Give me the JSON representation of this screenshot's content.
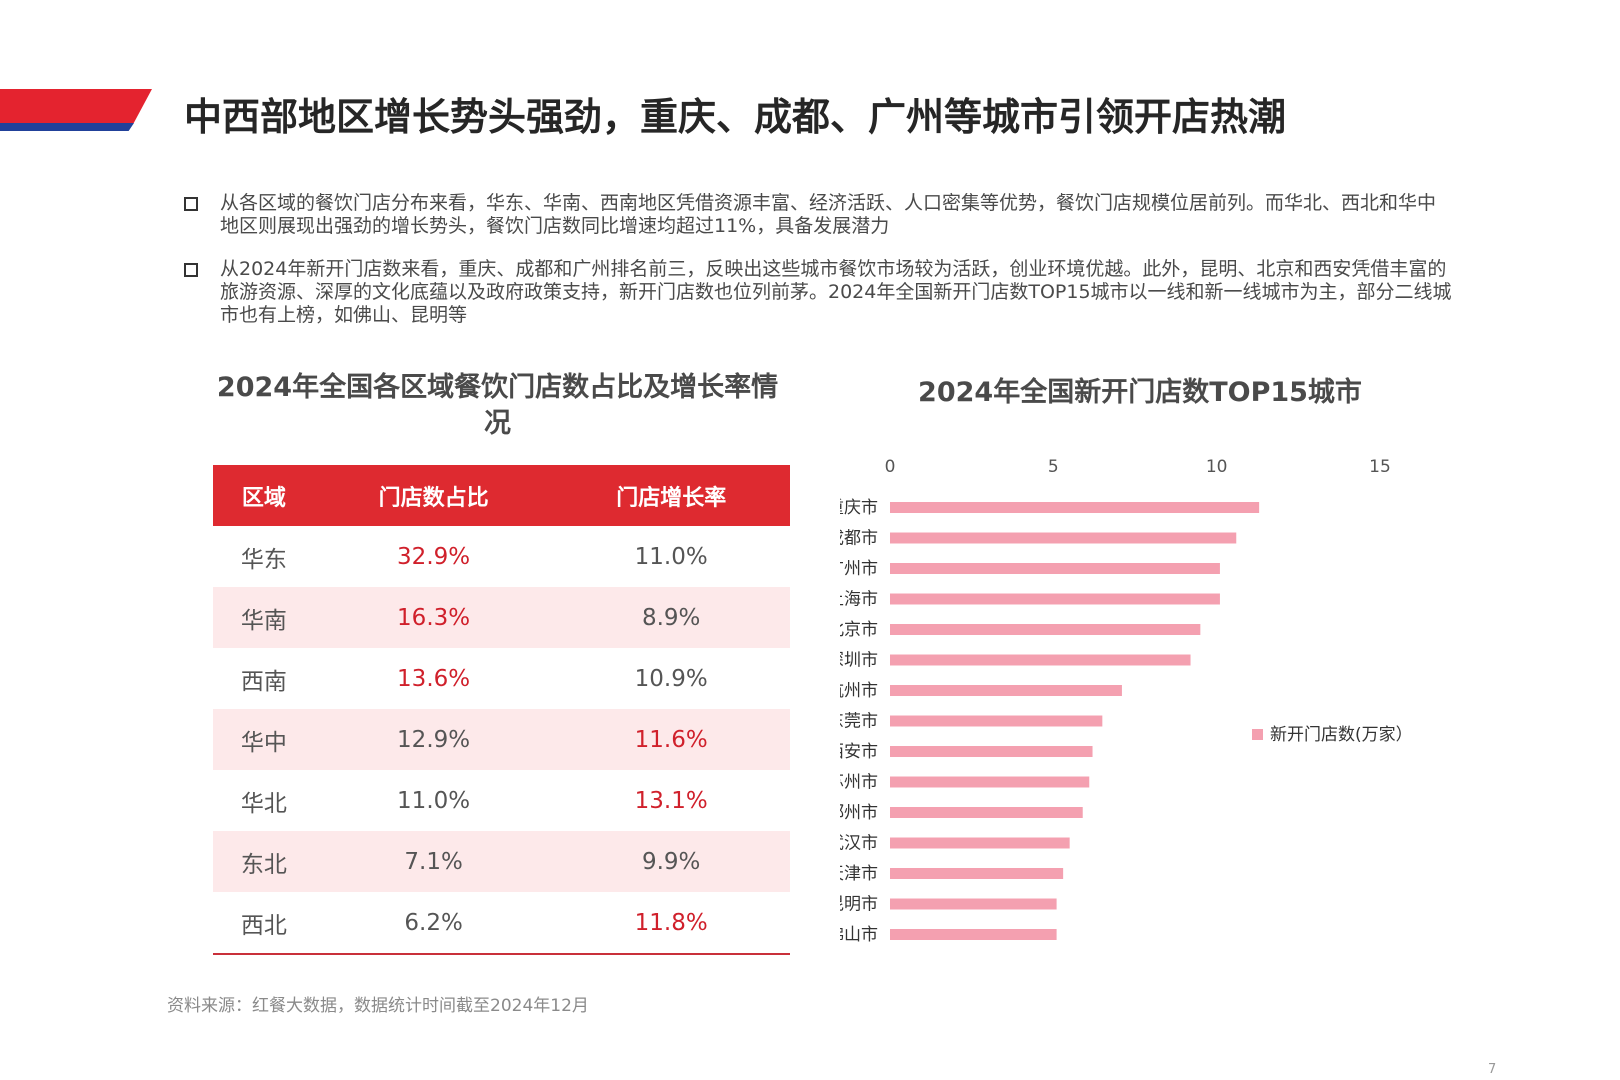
{
  "title": "中西部地区增长势头强劲，重庆、成都、广州等城市引领开店热潮",
  "bullets": [
    "从各区域的餐饮门店分布来看，华东、华南、西南地区凭借资源丰富、经济活跃、人口密集等优势，餐饮门店规模位居前列。而华北、西北和华中地区则展现出强劲的增长势头，餐饮门店数同比增速均超过11%，具备发展潜力",
    "从2024年新开门店数来看，重庆、成都和广州排名前三，反映出这些城市餐饮市场较为活跃，创业环境优越。此外，昆明、北京和西安凭借丰富的旅游资源、深厚的文化底蕴以及政府政策支持，新开门店数也位列前茅。2024年全国新开门店数TOP15城市以一线和新一线城市为主，部分二线城市也有上榜，如佛山、昆明等"
  ],
  "table": {
    "title": "2024年全国各区域餐饮门店数占比及增长率情况",
    "header_color": "#de2a30",
    "highlight_color": "#d0202b",
    "headers": [
      "区域",
      "门店数占比",
      "门店增长率"
    ],
    "rows": [
      {
        "region": "华东",
        "share": "32.9%",
        "growth": "11.0%",
        "hi_share": true,
        "hi_growth": false
      },
      {
        "region": "华南",
        "share": "16.3%",
        "growth": "8.9%",
        "hi_share": true,
        "hi_growth": false
      },
      {
        "region": "西南",
        "share": "13.6%",
        "growth": "10.9%",
        "hi_share": true,
        "hi_growth": false
      },
      {
        "region": "华中",
        "share": "12.9%",
        "growth": "11.6%",
        "hi_share": false,
        "hi_growth": true
      },
      {
        "region": "华北",
        "share": "11.0%",
        "growth": "13.1%",
        "hi_share": false,
        "hi_growth": true
      },
      {
        "region": "东北",
        "share": "7.1%",
        "growth": "9.9%",
        "hi_share": false,
        "hi_growth": false
      },
      {
        "region": "西北",
        "share": "6.2%",
        "growth": "11.8%",
        "hi_share": false,
        "hi_growth": true
      }
    ]
  },
  "chart_data": {
    "type": "bar",
    "orientation": "horizontal",
    "title": "2024年全国新开门店数TOP15城市",
    "categories": [
      "重庆市",
      "成都市",
      "广州市",
      "上海市",
      "北京市",
      "深圳市",
      "杭州市",
      "东莞市",
      "西安市",
      "苏州市",
      "郑州市",
      "武汉市",
      "天津市",
      "昆明市",
      "佛山市"
    ],
    "series": [
      {
        "name": "新开门店数(万家）",
        "values": [
          11.3,
          10.6,
          10.1,
          10.1,
          9.5,
          9.2,
          7.1,
          6.5,
          6.2,
          6.1,
          5.9,
          5.5,
          5.3,
          5.1,
          5.1
        ],
        "color": "#f4a0b0"
      }
    ],
    "xlim": [
      0,
      15
    ],
    "xticks": [
      0,
      5,
      10,
      15
    ],
    "legend_position": "right",
    "grid": false
  },
  "source": "资料来源：红餐大数据，数据统计时间截至2024年12月",
  "page_number": "7"
}
